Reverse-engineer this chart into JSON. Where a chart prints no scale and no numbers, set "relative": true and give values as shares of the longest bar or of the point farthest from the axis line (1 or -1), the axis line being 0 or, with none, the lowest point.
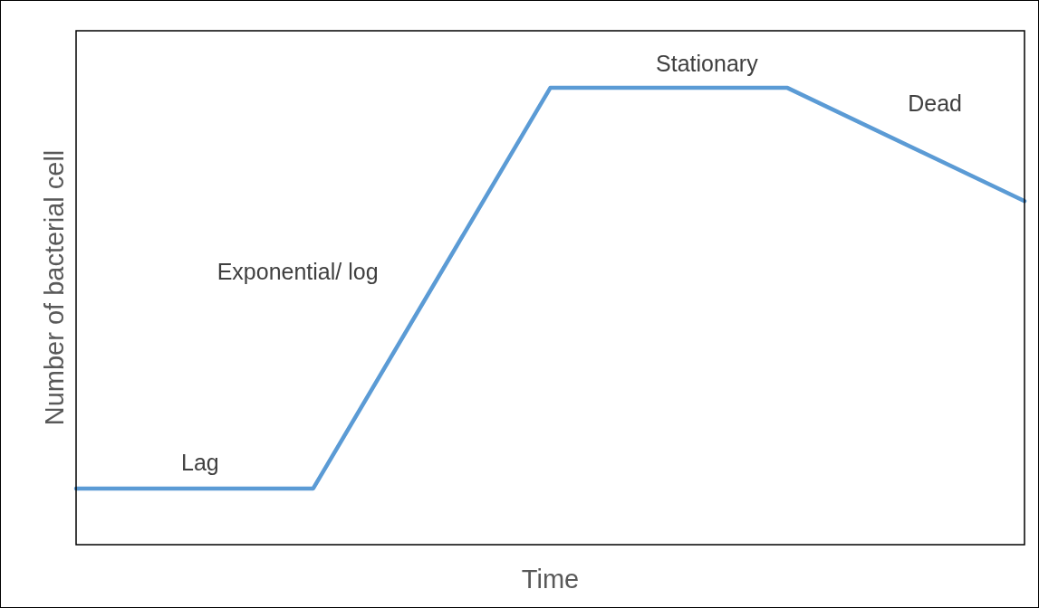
{
  "chart_data": {
    "type": "line",
    "relative": true,
    "categories": [
      null,
      null,
      null,
      null,
      null
    ],
    "series": [
      {
        "color": "#5b9bd5",
        "values": [
          0.123,
          0.123,
          1,
          1,
          0.752
        ]
      }
    ],
    "xlabel": "Time",
    "ylabel": "Number of bacterial cell",
    "annotations": [
      "Lag",
      "Exponential/ log",
      "Stationary",
      "Dead"
    ],
    "marker": "none",
    "line_style": "solid",
    "grid": false
  }
}
